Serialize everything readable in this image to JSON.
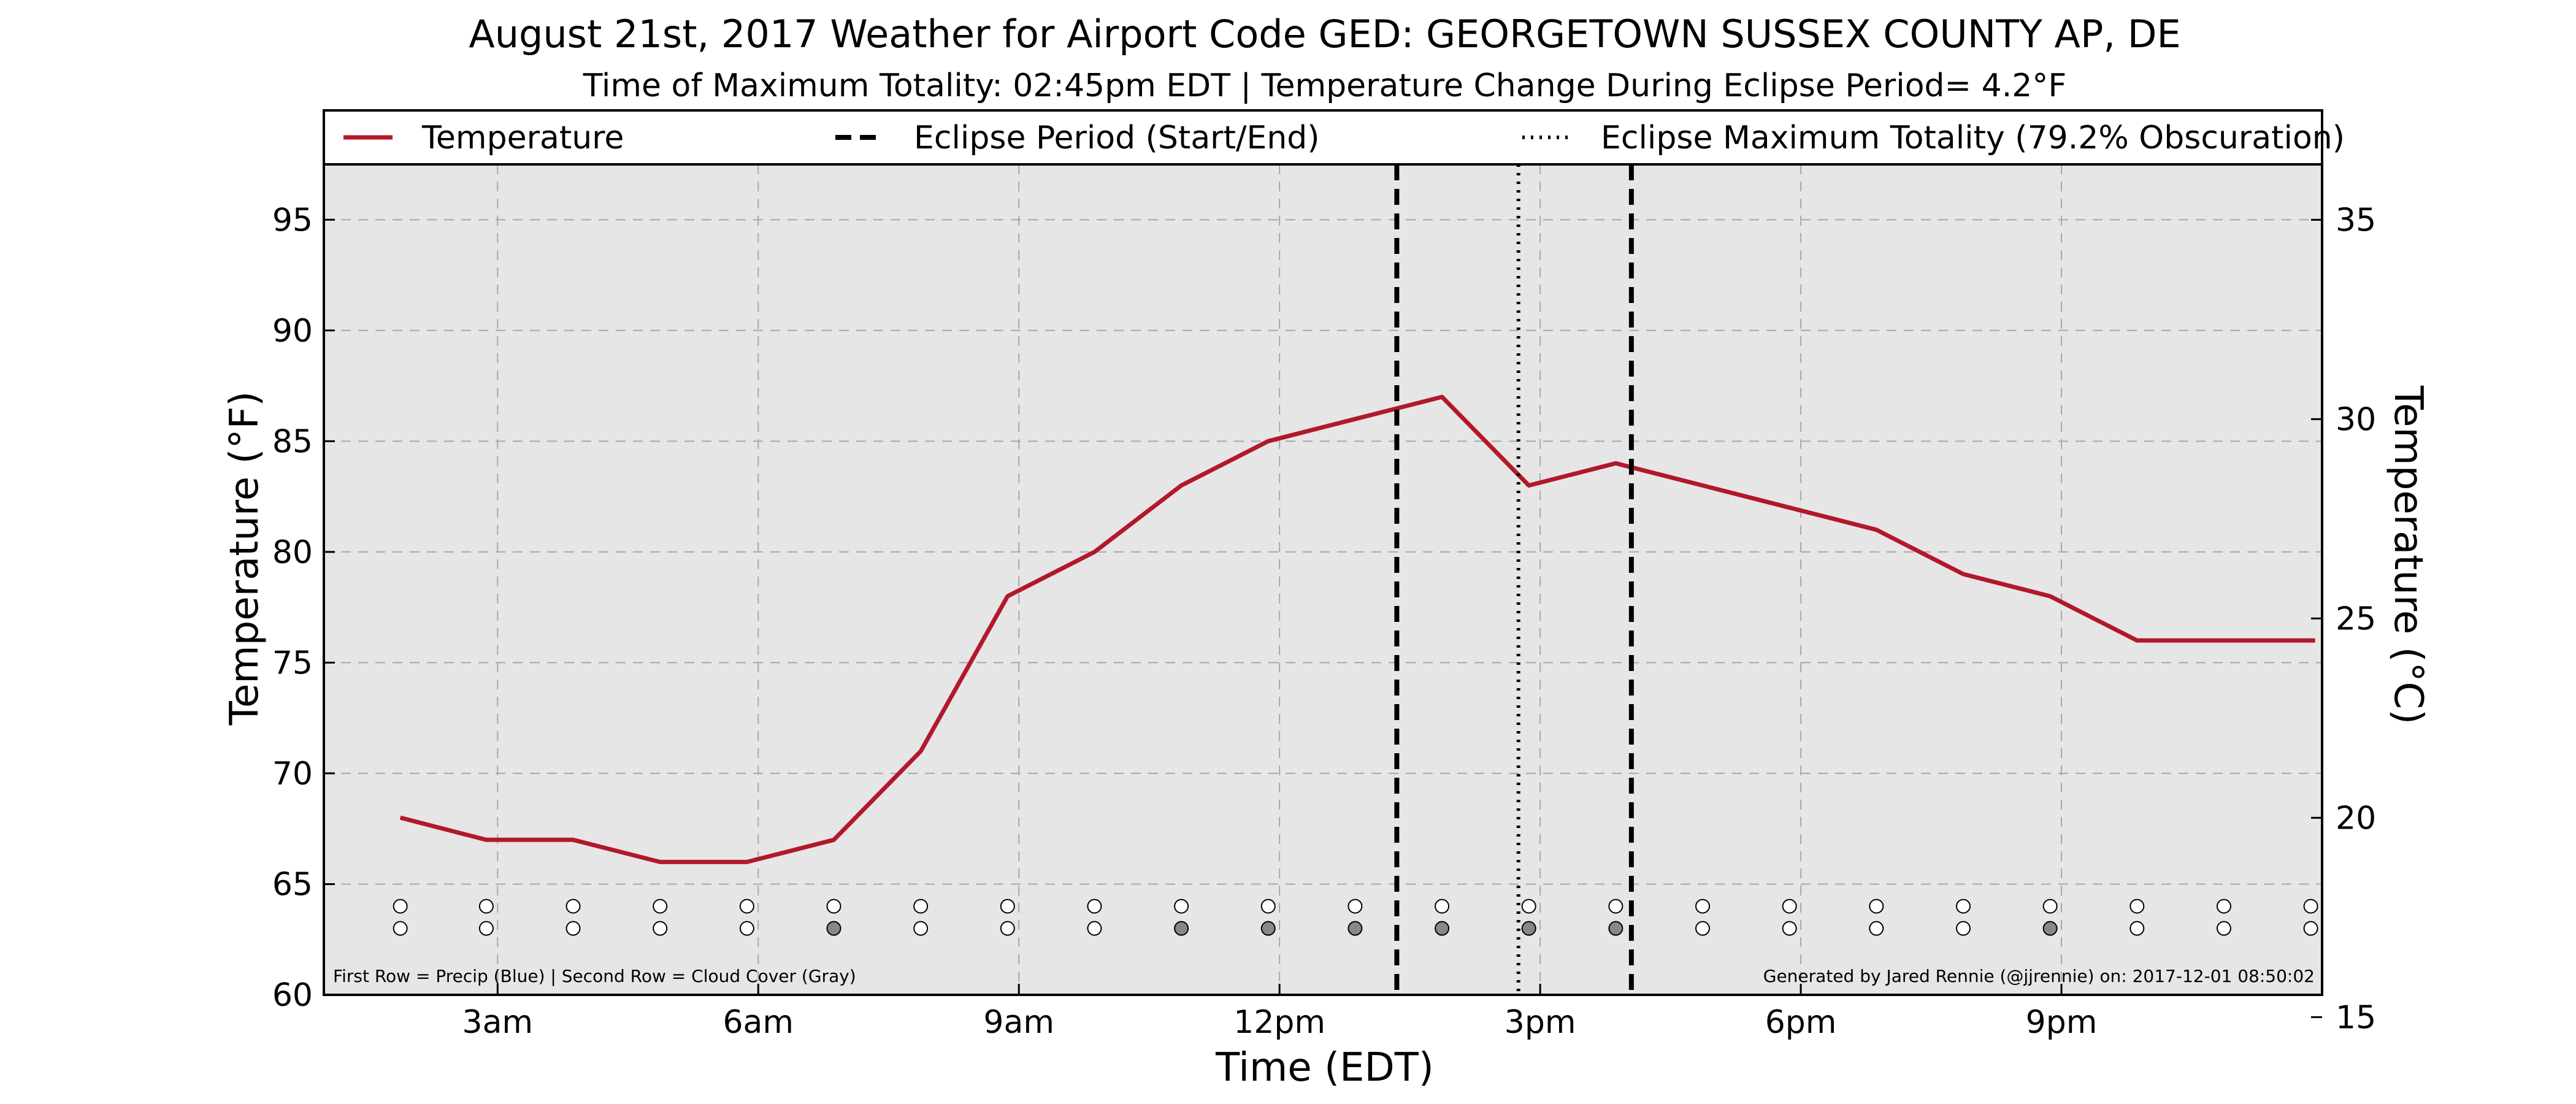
{
  "chart_data": {
    "type": "line",
    "title": "August 21st, 2017 Weather for Airport Code GED: GEORGETOWN SUSSEX COUNTY AP, DE",
    "subtitle": "Time of Maximum Totality: 02:45pm EDT | Temperature Change During Eclipse Period= 4.2°F",
    "xlabel": "Time (EDT)",
    "ylabel": "Temperature (°F)",
    "ylabel_right": "Temperature (°C)",
    "xlim": [
      1.0,
      24.0
    ],
    "ylim": [
      60,
      97.5
    ],
    "ylim_right_c": [
      15.56,
      36.39
    ],
    "x_ticks": [
      {
        "x": 3,
        "label": "3am"
      },
      {
        "x": 6,
        "label": "6am"
      },
      {
        "x": 9,
        "label": "9am"
      },
      {
        "x": 12,
        "label": "12pm"
      },
      {
        "x": 15,
        "label": "3pm"
      },
      {
        "x": 18,
        "label": "6pm"
      },
      {
        "x": 21,
        "label": "9pm"
      }
    ],
    "y_ticks": [
      60,
      65,
      70,
      75,
      80,
      85,
      90,
      95
    ],
    "y_ticks_right": [
      15,
      20,
      25,
      30,
      35
    ],
    "grid": true,
    "legend_placement": "top",
    "legend": [
      {
        "label": "Temperature",
        "style": "solid"
      },
      {
        "label": "Eclipse Period (Start/End)",
        "style": "dashed"
      },
      {
        "label": "Eclipse Maximum Totality (79.2% Obscuration)",
        "style": "dotted"
      }
    ],
    "series": [
      {
        "name": "Temperature",
        "color": "#b2182b",
        "x": [
          1.88,
          2.87,
          3.87,
          4.87,
          5.87,
          6.87,
          7.87,
          8.87,
          9.87,
          10.87,
          11.87,
          12.87,
          13.87,
          14.87,
          15.87,
          16.87,
          17.87,
          18.87,
          19.87,
          20.87,
          21.87,
          22.87,
          23.92
        ],
        "y": [
          68,
          67,
          67,
          66,
          66,
          67,
          71,
          78,
          80,
          83,
          85,
          86,
          87,
          83,
          84,
          83,
          82,
          81,
          79,
          78,
          76,
          76,
          76
        ]
      }
    ],
    "eclipse_start_x": 13.35,
    "eclipse_end_x": 16.05,
    "max_totality_x": 14.75,
    "indicator_rows": {
      "x": [
        1.88,
        2.87,
        3.87,
        4.87,
        5.87,
        6.87,
        7.87,
        8.87,
        9.87,
        10.87,
        11.87,
        12.87,
        13.87,
        14.87,
        15.87,
        16.87,
        17.87,
        18.87,
        19.87,
        20.87,
        21.87,
        22.87,
        23.87
      ],
      "precip_y": 64,
      "cloud_y": 63,
      "precip": [
        false,
        false,
        false,
        false,
        false,
        false,
        false,
        false,
        false,
        false,
        false,
        false,
        false,
        false,
        false,
        false,
        false,
        false,
        false,
        false,
        false,
        false,
        false
      ],
      "cloud_cover": [
        false,
        false,
        false,
        false,
        false,
        true,
        false,
        false,
        false,
        true,
        true,
        true,
        true,
        true,
        true,
        false,
        false,
        false,
        false,
        true,
        false,
        false,
        false
      ],
      "colors": {
        "empty": "#ffffff",
        "precip": "#1f5fbf",
        "cloud": "#888888"
      }
    },
    "footnote_left": "First Row = Precip (Blue) | Second Row = Cloud Cover (Gray)",
    "footnote_right": "Generated by Jared Rennie (@jjrennie) on: 2017-12-01 08:50:02",
    "colors": {
      "plot_background": "#e6e6e6",
      "grid": "#a8a8a8",
      "line": "#b2182b"
    }
  }
}
